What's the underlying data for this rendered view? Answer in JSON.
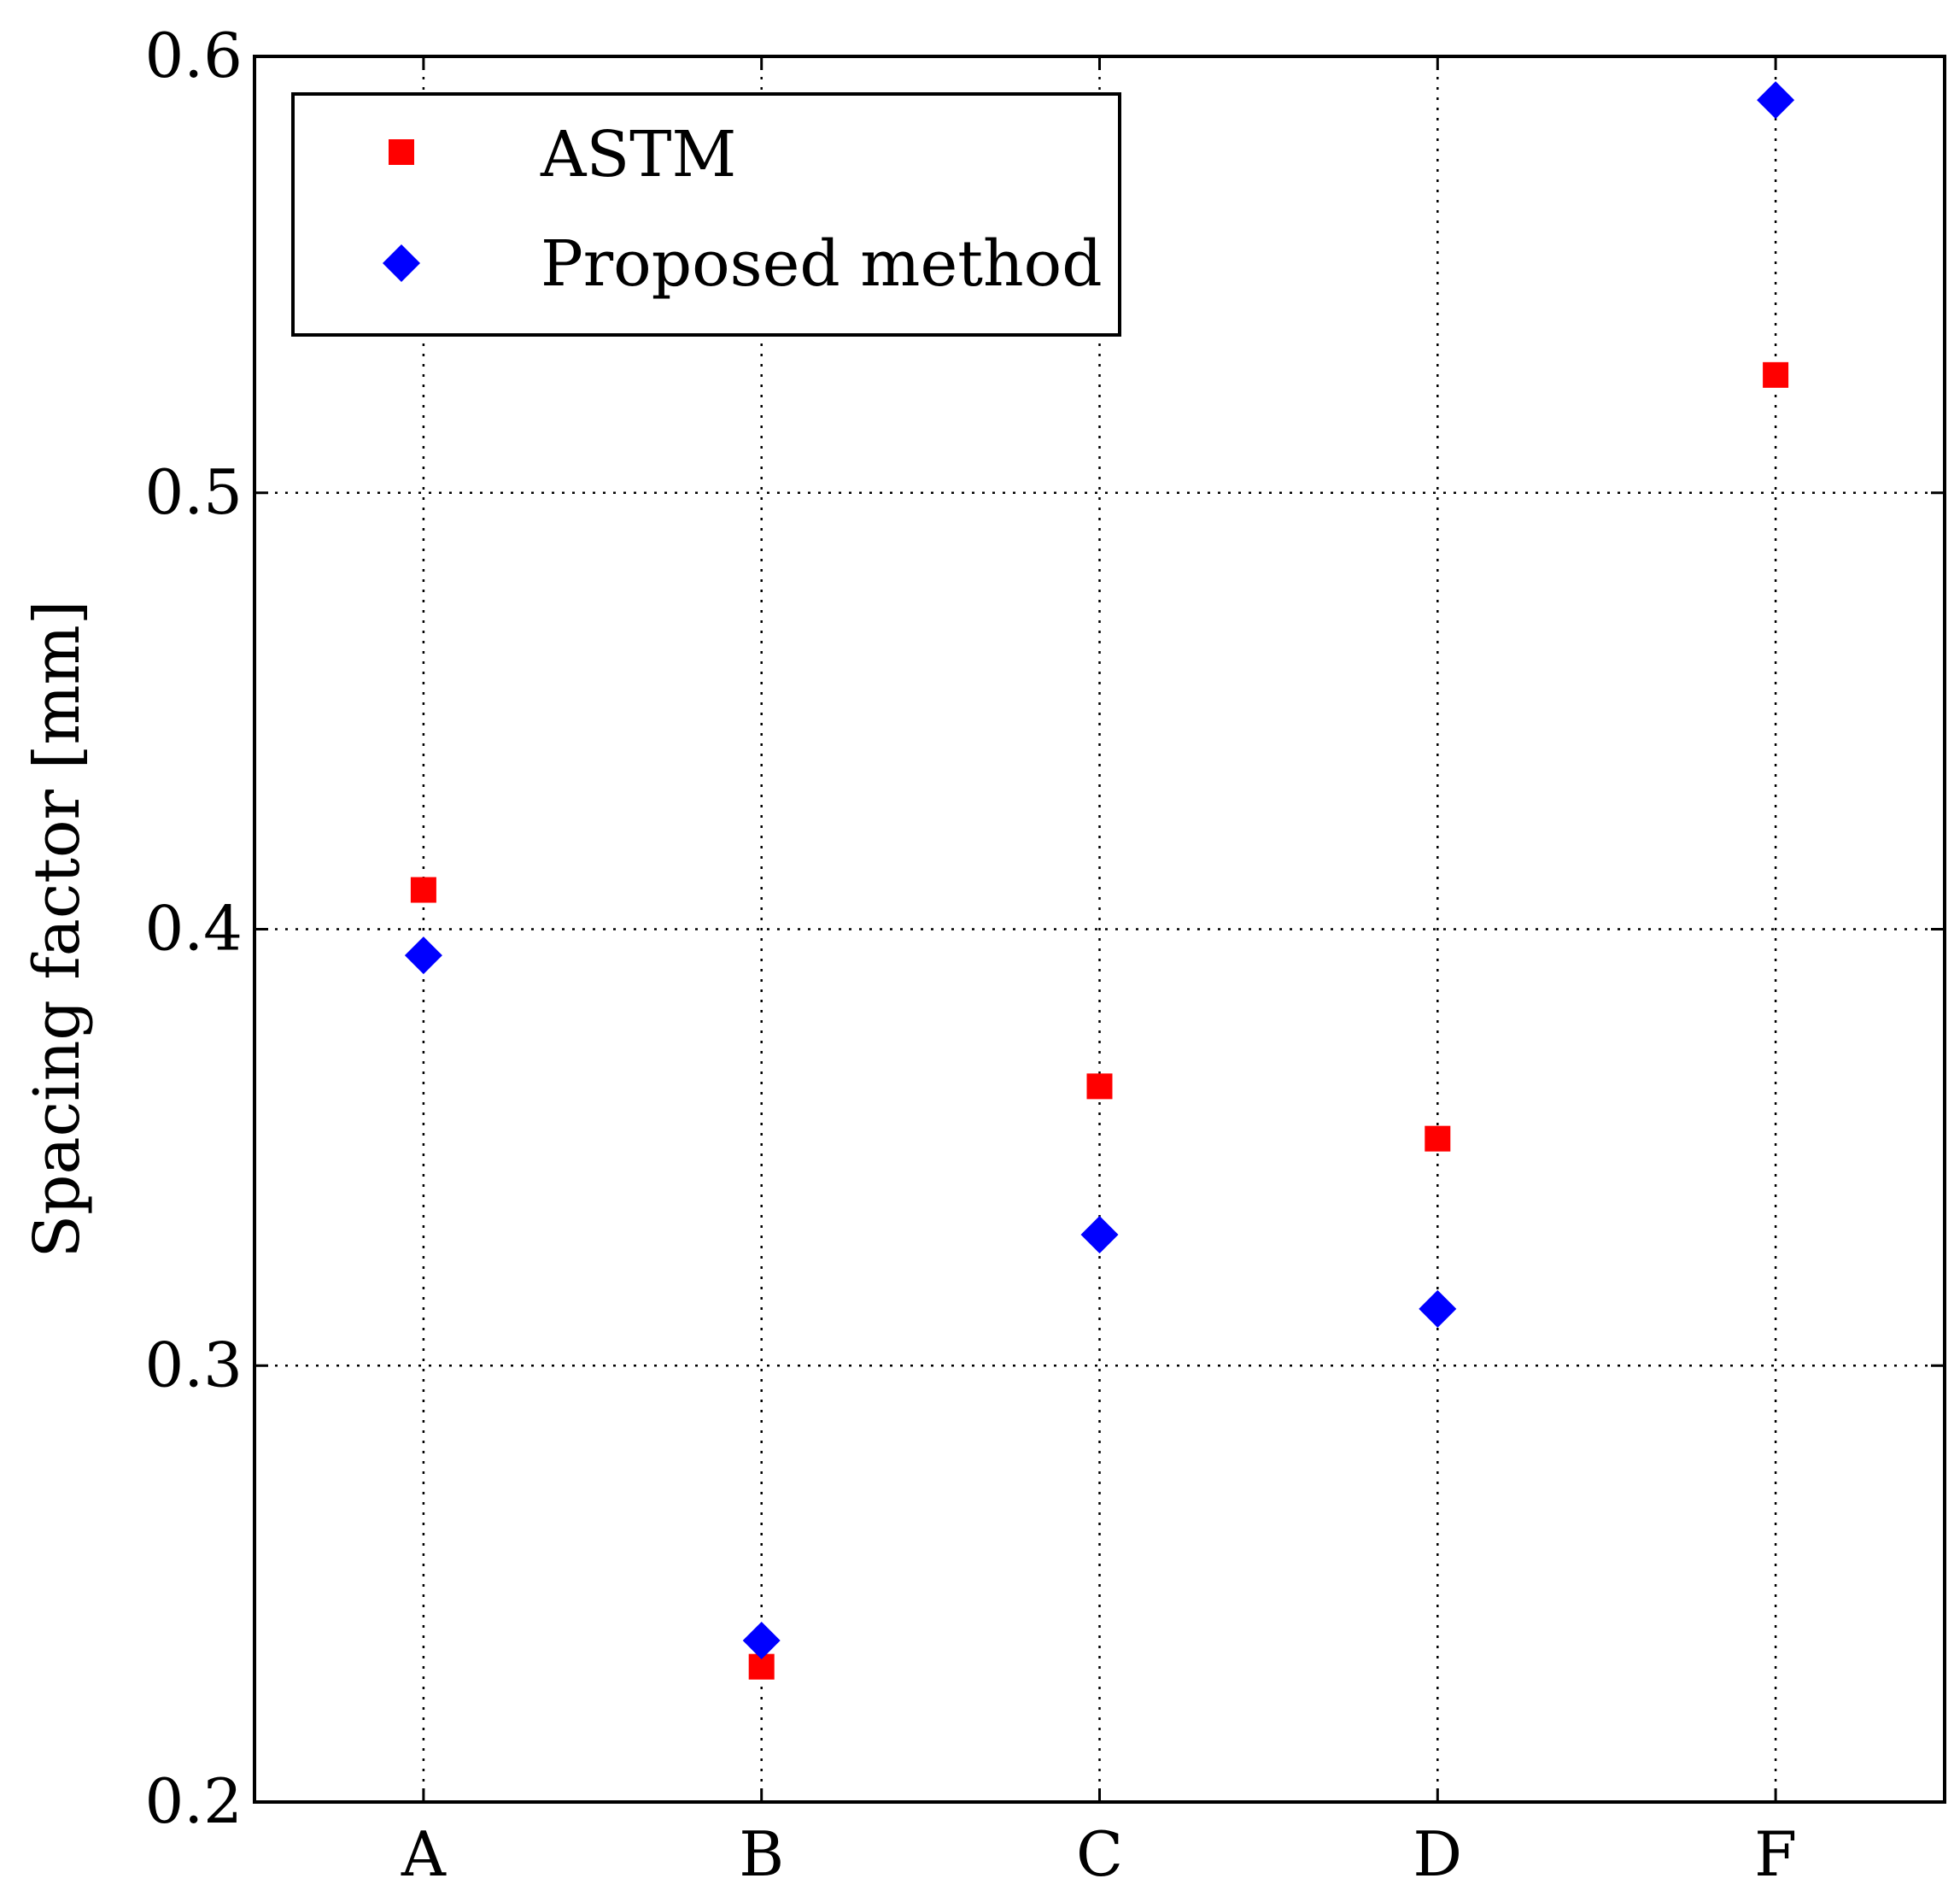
{
  "chart_data": {
    "type": "scatter",
    "title": "",
    "xlabel": "",
    "ylabel": "Spacing factor [mm]",
    "categories": [
      "A",
      "B",
      "C",
      "D",
      "F"
    ],
    "ylim": [
      0.2,
      0.6
    ],
    "yticks": [
      "0.2",
      "0.3",
      "0.4",
      "0.5",
      "0.6"
    ],
    "ytick_values": [
      0.2,
      0.3,
      0.4,
      0.5,
      0.6
    ],
    "grid": true,
    "legend_position": "top-left",
    "series": [
      {
        "name": "ASTM",
        "marker": "square",
        "color": "#ff0000",
        "values": [
          0.409,
          0.231,
          0.364,
          0.352,
          0.527
        ]
      },
      {
        "name": "Proposed method",
        "marker": "diamond",
        "color": "#0000ff",
        "values": [
          0.394,
          0.237,
          0.33,
          0.313,
          0.59
        ]
      }
    ]
  }
}
